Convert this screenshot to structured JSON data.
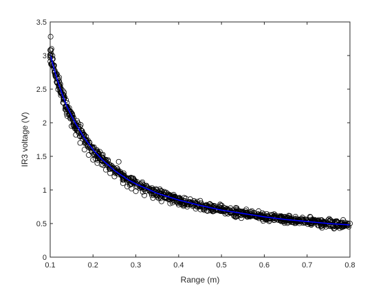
{
  "chart_data": {
    "type": "scatter",
    "title": "",
    "xlabel": "Range (m)",
    "ylabel": "IR3 voltage (V)",
    "xlim": [
      0.1,
      0.8
    ],
    "ylim": [
      0,
      3.5
    ],
    "xticks": [
      0.1,
      0.2,
      0.3,
      0.4,
      0.5,
      0.6,
      0.7,
      0.8
    ],
    "yticks": [
      0,
      0.5,
      1,
      1.5,
      2,
      2.5,
      3,
      3.5
    ],
    "xtick_labels": [
      "0.1",
      "0.2",
      "0.3",
      "0.4",
      "0.5",
      "0.6",
      "0.7",
      "0.8"
    ],
    "ytick_labels": [
      "0",
      "0.5",
      "1",
      "1.5",
      "2",
      "2.5",
      "3",
      "3.5"
    ],
    "grid": false,
    "series": [
      {
        "kind": "scatter",
        "marker": "open-circle",
        "color": "#000000",
        "points_description_x": [
          0.1,
          0.101,
          0.103,
          0.105,
          0.108,
          0.11,
          0.113,
          0.116,
          0.12,
          0.125,
          0.13,
          0.135,
          0.14,
          0.15,
          0.16,
          0.17,
          0.18,
          0.19,
          0.2,
          0.21,
          0.22,
          0.23,
          0.24,
          0.25,
          0.26,
          0.27,
          0.28,
          0.29,
          0.3,
          0.32,
          0.34,
          0.36,
          0.38,
          0.4,
          0.42,
          0.44,
          0.46,
          0.48,
          0.5,
          0.52,
          0.54,
          0.56,
          0.58,
          0.6,
          0.62,
          0.64,
          0.66,
          0.68,
          0.7,
          0.72,
          0.74,
          0.76,
          0.78,
          0.8
        ],
        "points_description_y": [
          3.08,
          3.28,
          3.1,
          2.95,
          2.85,
          2.75,
          2.7,
          2.6,
          2.55,
          2.45,
          2.3,
          2.2,
          2.1,
          1.95,
          1.82,
          1.7,
          1.6,
          1.52,
          1.45,
          1.4,
          1.38,
          1.3,
          1.25,
          1.2,
          1.42,
          1.1,
          1.05,
          1.02,
          0.98,
          0.92,
          0.88,
          0.83,
          0.8,
          0.78,
          0.75,
          0.72,
          0.7,
          0.68,
          0.72,
          0.66,
          0.64,
          0.63,
          0.62,
          0.6,
          0.58,
          0.57,
          0.56,
          0.55,
          0.54,
          0.53,
          0.52,
          0.52,
          0.51,
          0.5
        ]
      },
      {
        "kind": "line",
        "color": "#0000ff",
        "x": [
          0.1,
          0.11,
          0.12,
          0.13,
          0.14,
          0.15,
          0.16,
          0.18,
          0.2,
          0.22,
          0.25,
          0.28,
          0.3,
          0.35,
          0.4,
          0.45,
          0.5,
          0.55,
          0.6,
          0.65,
          0.7,
          0.75,
          0.8
        ],
        "y": [
          3.02,
          2.78,
          2.57,
          2.39,
          2.23,
          2.1,
          1.98,
          1.77,
          1.6,
          1.46,
          1.29,
          1.16,
          1.09,
          0.95,
          0.85,
          0.77,
          0.7,
          0.65,
          0.6,
          0.56,
          0.53,
          0.5,
          0.48
        ]
      }
    ]
  }
}
